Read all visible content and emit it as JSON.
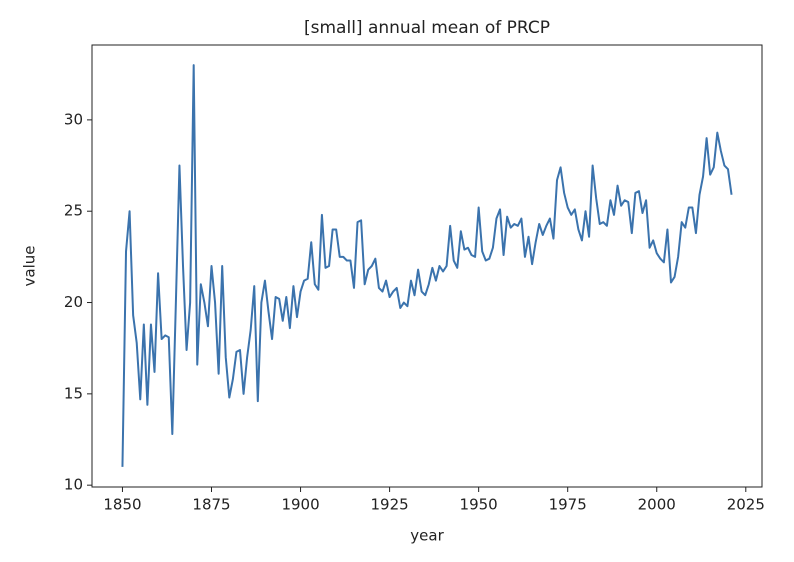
{
  "chart_data": {
    "type": "line",
    "title": "[small] annual mean of PRCP",
    "x_label": "year",
    "y_label": "value",
    "color": "#3b73ad",
    "x": [
      1850,
      1851,
      1852,
      1853,
      1854,
      1855,
      1856,
      1857,
      1858,
      1859,
      1860,
      1861,
      1862,
      1863,
      1864,
      1865,
      1866,
      1867,
      1868,
      1869,
      1870,
      1871,
      1872,
      1873,
      1874,
      1875,
      1876,
      1877,
      1878,
      1879,
      1880,
      1881,
      1882,
      1883,
      1884,
      1885,
      1886,
      1887,
      1888,
      1889,
      1890,
      1891,
      1892,
      1893,
      1894,
      1895,
      1896,
      1897,
      1898,
      1899,
      1900,
      1901,
      1902,
      1903,
      1904,
      1905,
      1906,
      1907,
      1908,
      1909,
      1910,
      1911,
      1912,
      1913,
      1914,
      1915,
      1916,
      1917,
      1918,
      1919,
      1920,
      1921,
      1922,
      1923,
      1924,
      1925,
      1926,
      1927,
      1928,
      1929,
      1930,
      1931,
      1932,
      1933,
      1934,
      1935,
      1936,
      1937,
      1938,
      1939,
      1940,
      1941,
      1942,
      1943,
      1944,
      1945,
      1946,
      1947,
      1948,
      1949,
      1950,
      1951,
      1952,
      1953,
      1954,
      1955,
      1956,
      1957,
      1958,
      1959,
      1960,
      1961,
      1962,
      1963,
      1964,
      1965,
      1966,
      1967,
      1968,
      1969,
      1970,
      1971,
      1972,
      1973,
      1974,
      1975,
      1976,
      1977,
      1978,
      1979,
      1980,
      1981,
      1982,
      1983,
      1984,
      1985,
      1986,
      1987,
      1988,
      1989,
      1990,
      1991,
      1992,
      1993,
      1994,
      1995,
      1996,
      1997,
      1998,
      1999,
      2000,
      2001,
      2002,
      2003,
      2004,
      2005,
      2006,
      2007,
      2008,
      2009,
      2010,
      2011,
      2012,
      2013,
      2014,
      2015,
      2016,
      2017,
      2018,
      2019,
      2020,
      2021
    ],
    "values": [
      11.0,
      22.8,
      25.0,
      19.3,
      17.8,
      14.7,
      18.8,
      14.4,
      18.8,
      16.2,
      21.6,
      18.0,
      18.2,
      18.1,
      12.8,
      20.0,
      27.5,
      22.0,
      17.4,
      20.0,
      33.0,
      16.6,
      21.0,
      20.0,
      18.7,
      22.0,
      20.0,
      16.1,
      22.0,
      17.0,
      14.8,
      15.8,
      17.3,
      17.4,
      15.0,
      17.0,
      18.5,
      20.9,
      14.6,
      20.0,
      21.2,
      19.5,
      18.0,
      20.3,
      20.2,
      19.0,
      20.3,
      18.6,
      20.9,
      19.2,
      20.6,
      21.2,
      21.3,
      23.3,
      21.0,
      20.7,
      24.8,
      21.9,
      22.0,
      24.0,
      24.0,
      22.5,
      22.5,
      22.3,
      22.3,
      20.8,
      24.4,
      24.5,
      21.0,
      21.8,
      22.0,
      22.4,
      20.8,
      20.6,
      21.2,
      20.3,
      20.6,
      20.8,
      19.7,
      20.0,
      19.8,
      21.2,
      20.4,
      21.8,
      20.6,
      20.4,
      21.0,
      21.9,
      21.2,
      22.0,
      21.7,
      22.0,
      24.2,
      22.3,
      21.9,
      23.9,
      22.9,
      23.0,
      22.6,
      22.5,
      25.2,
      22.8,
      22.3,
      22.4,
      23.0,
      24.6,
      25.1,
      22.6,
      24.7,
      24.1,
      24.3,
      24.2,
      24.6,
      22.5,
      23.6,
      22.1,
      23.3,
      24.3,
      23.7,
      24.2,
      24.6,
      23.5,
      26.7,
      27.4,
      26.0,
      25.2,
      24.8,
      25.1,
      24.0,
      23.4,
      25.0,
      23.6,
      27.5,
      25.7,
      24.3,
      24.4,
      24.2,
      25.6,
      24.8,
      26.4,
      25.3,
      25.6,
      25.5,
      23.8,
      26.0,
      26.1,
      24.9,
      25.6,
      23.0,
      23.4,
      22.7,
      22.4,
      22.2,
      24.0,
      21.1,
      21.4,
      22.5,
      24.4,
      24.1,
      25.2,
      25.2,
      23.8,
      25.9,
      26.9,
      29.0,
      27.0,
      27.4,
      29.3,
      28.3,
      27.5,
      27.3,
      25.9
    ],
    "xlim": [
      1841.45,
      2029.55
    ],
    "xticks": [
      1850,
      1875,
      1900,
      1925,
      1950,
      1975,
      2000,
      2025
    ],
    "ylim": [
      9.9,
      34.1
    ],
    "yticks": [
      10,
      15,
      20,
      25,
      30
    ]
  }
}
